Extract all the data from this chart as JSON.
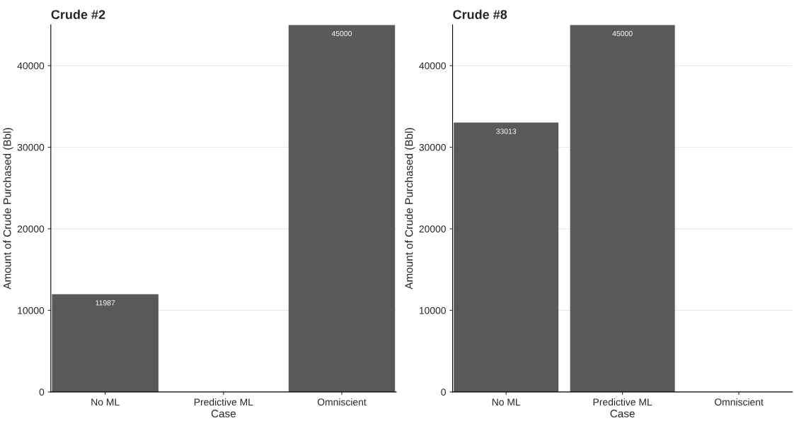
{
  "chart_data": [
    {
      "type": "bar",
      "title": "Crude #2",
      "xlabel": "Case",
      "ylabel": "Amount of Crude Purchased (Bbl)",
      "categories": [
        "No ML",
        "Predictive ML",
        "Omniscient"
      ],
      "values": [
        11987,
        0,
        45000
      ],
      "value_labels": [
        "11987",
        null,
        "45000"
      ],
      "color": "#595959",
      "ylim": [
        0,
        45000
      ],
      "yticks": [
        0,
        10000,
        20000,
        30000,
        40000
      ],
      "grid": "y"
    },
    {
      "type": "bar",
      "title": "Crude #8",
      "xlabel": "Case",
      "ylabel": "Amount of Crude Purchased (Bbl)",
      "categories": [
        "No ML",
        "Predictive ML",
        "Omniscient"
      ],
      "values": [
        33013,
        45000,
        0
      ],
      "value_labels": [
        "33013",
        "45000",
        null
      ],
      "color": "#595959",
      "ylim": [
        0,
        45000
      ],
      "yticks": [
        0,
        10000,
        20000,
        30000,
        40000
      ],
      "grid": "y"
    }
  ]
}
